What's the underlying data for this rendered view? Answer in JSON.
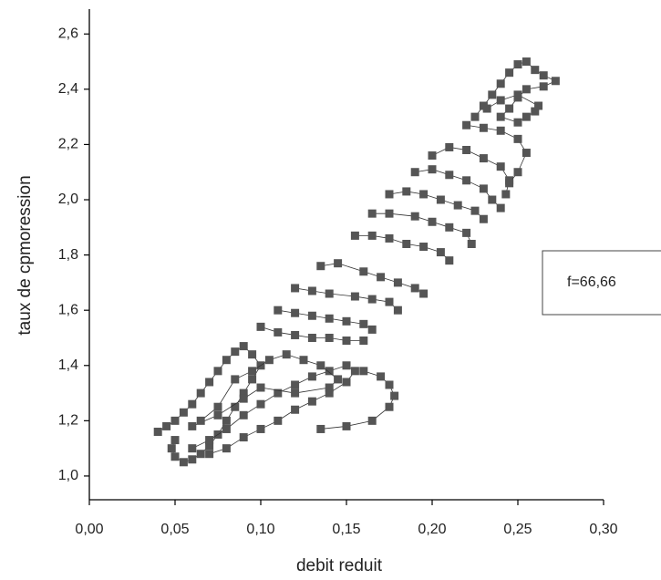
{
  "chart_data": {
    "type": "scatter",
    "x_label": "debit reduit",
    "y_label": "taux de cpmoression",
    "annotation": "f=66,66",
    "xlim": [
      0,
      0.3
    ],
    "ylim": [
      0.914,
      2.69
    ],
    "xticks": [
      {
        "value": 0,
        "label": "0,00"
      },
      {
        "value": 0.05,
        "label": "0,05"
      },
      {
        "value": 0.1,
        "label": "0,10"
      },
      {
        "value": 0.15,
        "label": "0,15"
      },
      {
        "value": 0.2,
        "label": "0,20"
      },
      {
        "value": 0.25,
        "label": "0,25"
      },
      {
        "value": 0.3,
        "label": "0,30"
      }
    ],
    "yticks": [
      {
        "value": 1.0,
        "label": "1,0"
      },
      {
        "value": 1.2,
        "label": "1,2"
      },
      {
        "value": 1.4,
        "label": "1,4"
      },
      {
        "value": 1.6,
        "label": "1,6"
      },
      {
        "value": 1.8,
        "label": "1,8"
      },
      {
        "value": 2.0,
        "label": "2,0"
      },
      {
        "value": 2.2,
        "label": "2,2"
      },
      {
        "value": 2.4,
        "label": "2,4"
      },
      {
        "value": 2.6,
        "label": "2,6"
      }
    ],
    "connect": true,
    "series": [
      {
        "color": "#555555",
        "x": [
          0.04,
          0.045,
          0.05,
          0.055,
          0.06,
          0.065,
          0.07,
          0.075,
          0.08,
          0.085,
          0.09,
          0.095,
          0.1,
          0.095,
          0.09,
          0.085,
          0.08,
          0.075,
          0.07,
          0.065,
          0.06,
          0.055,
          0.05,
          0.048,
          0.05
        ],
        "y": [
          1.16,
          1.18,
          1.2,
          1.23,
          1.26,
          1.3,
          1.34,
          1.38,
          1.42,
          1.45,
          1.47,
          1.44,
          1.4,
          1.35,
          1.3,
          1.25,
          1.2,
          1.15,
          1.11,
          1.08,
          1.06,
          1.05,
          1.07,
          1.1,
          1.13
        ]
      },
      {
        "color": "#555555",
        "x": [
          0.06,
          0.07,
          0.08,
          0.09,
          0.1,
          0.11,
          0.12,
          0.13,
          0.14,
          0.15,
          0.155,
          0.15,
          0.14,
          0.13,
          0.12,
          0.11,
          0.1,
          0.09,
          0.08,
          0.07
        ],
        "y": [
          1.1,
          1.13,
          1.17,
          1.22,
          1.26,
          1.3,
          1.33,
          1.36,
          1.38,
          1.4,
          1.38,
          1.34,
          1.3,
          1.27,
          1.24,
          1.2,
          1.17,
          1.14,
          1.1,
          1.08
        ]
      },
      {
        "color": "#555555",
        "x": [
          0.065,
          0.075,
          0.085,
          0.095,
          0.105,
          0.115,
          0.125,
          0.135,
          0.145,
          0.14,
          0.12,
          0.1,
          0.09,
          0.075,
          0.06
        ],
        "y": [
          1.2,
          1.25,
          1.35,
          1.38,
          1.42,
          1.44,
          1.42,
          1.4,
          1.35,
          1.32,
          1.3,
          1.32,
          1.28,
          1.22,
          1.18
        ]
      },
      {
        "color": "#555555",
        "x": [
          0.135,
          0.15,
          0.165,
          0.175,
          0.178,
          0.175,
          0.17,
          0.16
        ],
        "y": [
          1.17,
          1.18,
          1.2,
          1.25,
          1.29,
          1.33,
          1.36,
          1.38
        ]
      },
      {
        "color": "#555555",
        "x": [
          0.1,
          0.11,
          0.12,
          0.13,
          0.14,
          0.15,
          0.16
        ],
        "y": [
          1.54,
          1.52,
          1.51,
          1.5,
          1.5,
          1.49,
          1.49
        ]
      },
      {
        "color": "#555555",
        "x": [
          0.11,
          0.12,
          0.13,
          0.14,
          0.15,
          0.16,
          0.165
        ],
        "y": [
          1.6,
          1.59,
          1.58,
          1.57,
          1.56,
          1.55,
          1.53
        ]
      },
      {
        "color": "#555555",
        "x": [
          0.12,
          0.13,
          0.14,
          0.155,
          0.165,
          0.175,
          0.18
        ],
        "y": [
          1.68,
          1.67,
          1.66,
          1.65,
          1.64,
          1.63,
          1.6
        ]
      },
      {
        "color": "#555555",
        "x": [
          0.135,
          0.145,
          0.16,
          0.17,
          0.18,
          0.19,
          0.195
        ],
        "y": [
          1.76,
          1.77,
          1.74,
          1.72,
          1.7,
          1.68,
          1.66
        ]
      },
      {
        "color": "#555555",
        "x": [
          0.155,
          0.165,
          0.175,
          0.185,
          0.195,
          0.205,
          0.21
        ],
        "y": [
          1.87,
          1.87,
          1.86,
          1.84,
          1.83,
          1.81,
          1.78
        ]
      },
      {
        "color": "#555555",
        "x": [
          0.165,
          0.175,
          0.19,
          0.2,
          0.21,
          0.22,
          0.223
        ],
        "y": [
          1.95,
          1.95,
          1.94,
          1.92,
          1.9,
          1.88,
          1.84
        ]
      },
      {
        "color": "#555555",
        "x": [
          0.175,
          0.185,
          0.195,
          0.205,
          0.215,
          0.225,
          0.23
        ],
        "y": [
          2.02,
          2.03,
          2.02,
          2.0,
          1.98,
          1.96,
          1.93
        ]
      },
      {
        "color": "#555555",
        "x": [
          0.19,
          0.2,
          0.21,
          0.22,
          0.23,
          0.235,
          0.24
        ],
        "y": [
          2.1,
          2.11,
          2.09,
          2.07,
          2.04,
          2.0,
          1.97
        ]
      },
      {
        "color": "#555555",
        "x": [
          0.2,
          0.21,
          0.22,
          0.23,
          0.24,
          0.245,
          0.243
        ],
        "y": [
          2.16,
          2.19,
          2.18,
          2.15,
          2.12,
          2.07,
          2.02
        ]
      },
      {
        "color": "#555555",
        "x": [
          0.22,
          0.23,
          0.24,
          0.25,
          0.255,
          0.25,
          0.245
        ],
        "y": [
          2.27,
          2.26,
          2.25,
          2.22,
          2.17,
          2.1,
          2.06
        ]
      },
      {
        "color": "#555555",
        "x": [
          0.225,
          0.23,
          0.235,
          0.24,
          0.245,
          0.25,
          0.255,
          0.26,
          0.265,
          0.272,
          0.265,
          0.255,
          0.25,
          0.245,
          0.24,
          0.25,
          0.255,
          0.26,
          0.262,
          0.25,
          0.24,
          0.232
        ],
        "y": [
          2.3,
          2.34,
          2.38,
          2.42,
          2.46,
          2.49,
          2.5,
          2.47,
          2.45,
          2.43,
          2.41,
          2.4,
          2.37,
          2.33,
          2.3,
          2.28,
          2.3,
          2.32,
          2.34,
          2.38,
          2.36,
          2.33
        ]
      }
    ]
  }
}
